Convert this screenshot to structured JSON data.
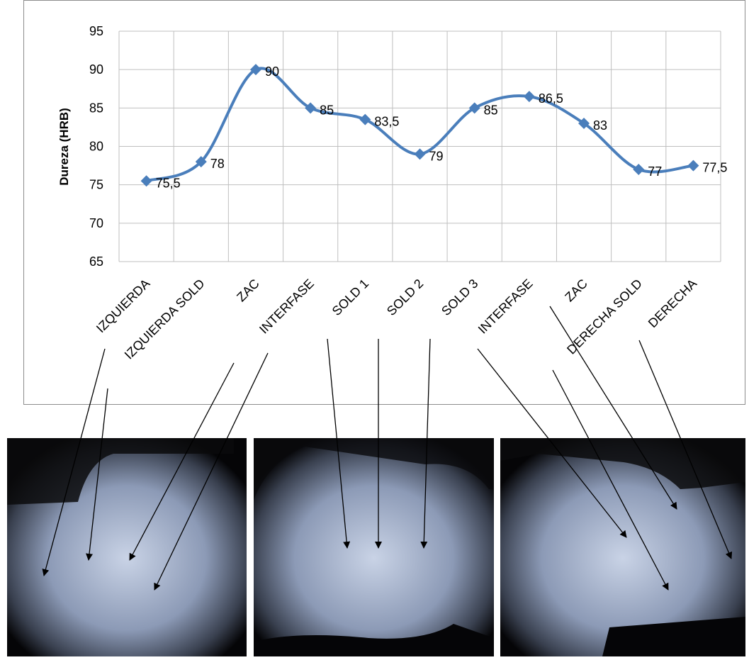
{
  "chart_data": {
    "type": "line",
    "y_label": "Dureza (HRB)",
    "categories": [
      "IZQUIERDA",
      "IZQUIERDA SOLD",
      "ZAC",
      "INTERFASE",
      "SOLD 1",
      "SOLD 2",
      "SOLD 3",
      "INTERFASE",
      "ZAC",
      "DERECHA SOLD",
      "DERECHA"
    ],
    "values": [
      75.5,
      78,
      90,
      85,
      83.5,
      79,
      85,
      86.5,
      83,
      77,
      77.5
    ],
    "value_labels": [
      "75,5",
      "78",
      "90",
      "85",
      "83,5",
      "79",
      "85",
      "86,5",
      "83",
      "77",
      "77,5"
    ],
    "color": "#4a7ebb",
    "ylim": [
      65,
      95
    ],
    "yticks": [
      65,
      70,
      75,
      80,
      85,
      90,
      95
    ],
    "grid": true,
    "smooth": true
  }
}
